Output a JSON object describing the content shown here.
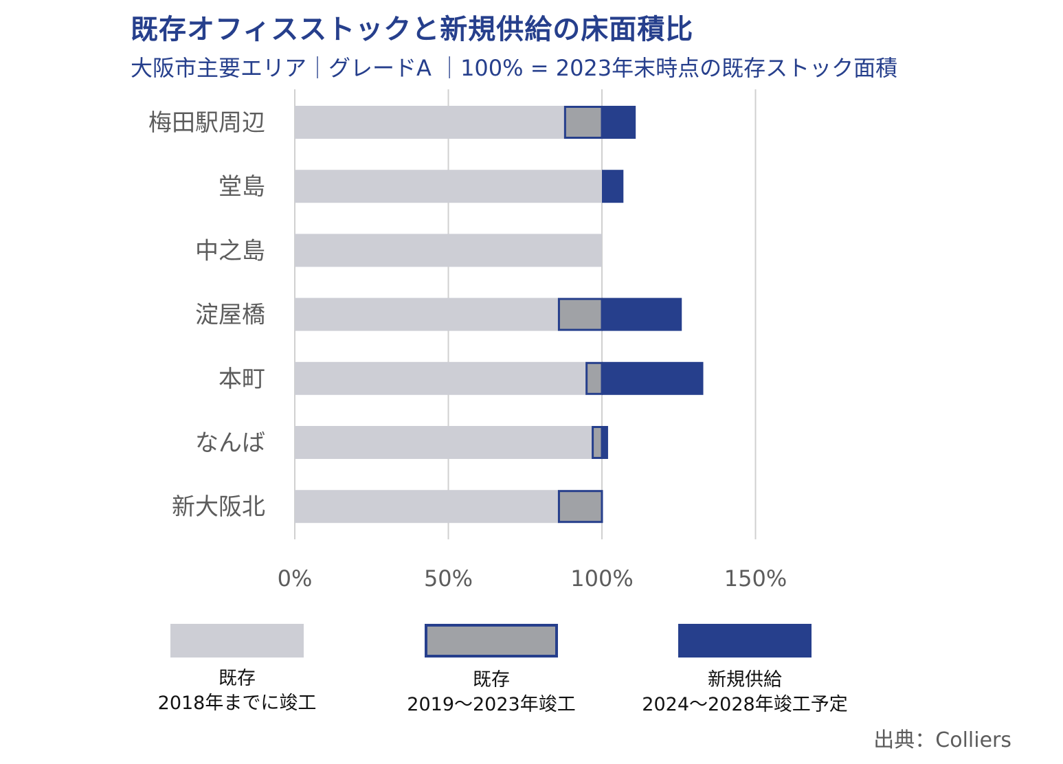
{
  "title": "既存オフィスストックと新規供給の床面積比",
  "subtitle": "大阪市主要エリア｜グレードA ｜100% = 2023年末時点の既存ストック面積",
  "colors": {
    "pre2019": "#cdced5",
    "y2019_2023_fill": "#a0a2a6",
    "y2019_2023_border": "#263f8c",
    "new_supply": "#263f8c",
    "grid": "#d0d0d0"
  },
  "chart_data": {
    "type": "bar",
    "orientation": "horizontal",
    "stacked": true,
    "categories": [
      "梅田駅周辺",
      "堂島",
      "中之島",
      "淀屋橋",
      "本町",
      "なんば",
      "新大阪北"
    ],
    "series": [
      {
        "name": "既存 2018年までに竣工",
        "values": [
          88,
          100,
          100,
          86,
          95,
          97,
          86
        ]
      },
      {
        "name": "既存 2019〜2023年竣工",
        "values": [
          12,
          0,
          0,
          14,
          5,
          3,
          14
        ]
      },
      {
        "name": "新規供給 2024〜2028年竣工予定",
        "values": [
          11,
          7,
          0,
          26,
          33,
          2,
          0
        ]
      }
    ],
    "xlim": [
      0,
      150
    ],
    "xticks": [
      0,
      50,
      100,
      150
    ],
    "xtick_labels": [
      "0%",
      "50%",
      "100%",
      "150%"
    ],
    "xlabel": "",
    "ylabel": "",
    "grid": true
  },
  "legend": [
    {
      "line1": "既存",
      "line2": "2018年までに竣工"
    },
    {
      "line1": "既存",
      "line2": "2019～2023年竣工"
    },
    {
      "line1": "新規供給",
      "line2": "2024～2028年竣工予定"
    }
  ],
  "source": "出典：Colliers"
}
